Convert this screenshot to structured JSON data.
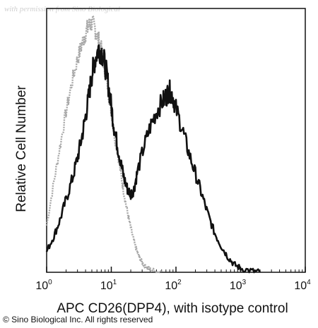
{
  "watermark": "with permission from Sino Biological",
  "copyright": "© Sino Biological Inc. All rights reserved",
  "chart_data": {
    "type": "area",
    "xlabel": "APC CD26(DPP4), with isotype control",
    "ylabel": "Relative Cell Number",
    "x_scale": "log",
    "xlim": [
      1,
      10000
    ],
    "ylim": [
      0,
      100
    ],
    "x_ticks": [
      {
        "value": 1,
        "base": "10",
        "exp": "0"
      },
      {
        "value": 10,
        "base": "10",
        "exp": "1"
      },
      {
        "value": 100,
        "base": "10",
        "exp": "2"
      },
      {
        "value": 1000,
        "base": "10",
        "exp": "3"
      },
      {
        "value": 10000,
        "base": "10",
        "exp": "4"
      }
    ],
    "grid": false,
    "legend": "none",
    "series": [
      {
        "role": "isotype",
        "color": "#a8a8a8",
        "points": [
          [
            1.0,
            18
          ],
          [
            1.3,
            35
          ],
          [
            1.6,
            48
          ],
          [
            2.0,
            62
          ],
          [
            2.5,
            74
          ],
          [
            3.0,
            82
          ],
          [
            3.5,
            88
          ],
          [
            4.0,
            92
          ],
          [
            4.5,
            95
          ],
          [
            5.0,
            96
          ],
          [
            5.6,
            94
          ],
          [
            6.3,
            90
          ],
          [
            7.1,
            85
          ],
          [
            8.0,
            78
          ],
          [
            9.0,
            70
          ],
          [
            10,
            62
          ],
          [
            11,
            54
          ],
          [
            12.6,
            46
          ],
          [
            14.1,
            38
          ],
          [
            15.8,
            30
          ],
          [
            17.8,
            23
          ],
          [
            20,
            17
          ],
          [
            22.4,
            12
          ],
          [
            25,
            8
          ],
          [
            28,
            5
          ],
          [
            31.6,
            3
          ],
          [
            35,
            2
          ],
          [
            40,
            1
          ],
          [
            50,
            0.5
          ],
          [
            60,
            0
          ]
        ]
      },
      {
        "role": "CD26",
        "color": "#111111",
        "points": [
          [
            1.0,
            8
          ],
          [
            1.3,
            14
          ],
          [
            1.6,
            20
          ],
          [
            2.0,
            28
          ],
          [
            2.5,
            36
          ],
          [
            3.0,
            44
          ],
          [
            3.5,
            52
          ],
          [
            4.0,
            60
          ],
          [
            4.5,
            68
          ],
          [
            5.0,
            76
          ],
          [
            5.6,
            82
          ],
          [
            6.3,
            86
          ],
          [
            7.1,
            85
          ],
          [
            8.0,
            80
          ],
          [
            9.0,
            72
          ],
          [
            10,
            64
          ],
          [
            11,
            56
          ],
          [
            12.6,
            48
          ],
          [
            14.1,
            42
          ],
          [
            15.8,
            36
          ],
          [
            17.8,
            32
          ],
          [
            20,
            30
          ],
          [
            22.4,
            32
          ],
          [
            25,
            38
          ],
          [
            31.6,
            48
          ],
          [
            40,
            56
          ],
          [
            50,
            62
          ],
          [
            63,
            66
          ],
          [
            71,
            68
          ],
          [
            79,
            70
          ],
          [
            89,
            68
          ],
          [
            100,
            63
          ],
          [
            126,
            55
          ],
          [
            158,
            46
          ],
          [
            200,
            38
          ],
          [
            251,
            30
          ],
          [
            316,
            22
          ],
          [
            398,
            15
          ],
          [
            501,
            10
          ],
          [
            631,
            6
          ],
          [
            794,
            3
          ],
          [
            1000,
            1.5
          ],
          [
            1500,
            0.5
          ],
          [
            2000,
            0
          ]
        ]
      }
    ]
  }
}
